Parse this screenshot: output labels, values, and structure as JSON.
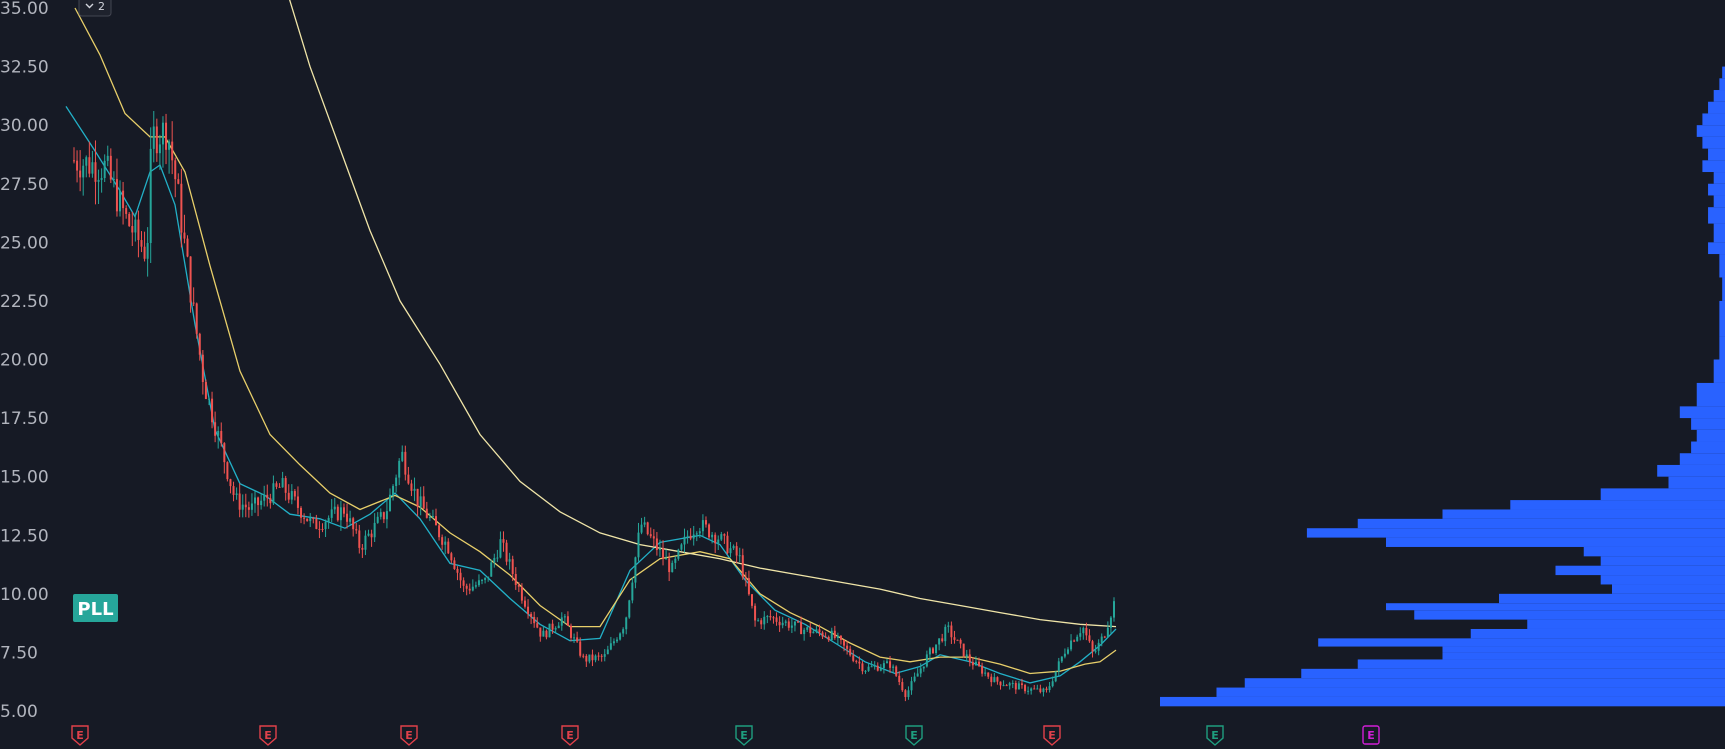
{
  "pane_badge": "2",
  "symbol": "PLL",
  "colors": {
    "background": "#161a25",
    "up": "#26a69a",
    "down": "#ef5350",
    "ma_fast": "#22b0c7",
    "ma_mid": "#e8cf6a",
    "ma_long": "#f0e5a8",
    "volume_profile": "#2962ff",
    "ticker_badge": "#26a69a",
    "earnings_red": "#e0414a",
    "earnings_green": "#1e9e7f",
    "earnings_magenta": "#d01ed6"
  },
  "chart_data": {
    "type": "candlestick",
    "y_axis": {
      "range": [
        4.0,
        35.3
      ],
      "ticks": [
        "35.00",
        "32.50",
        "30.00",
        "27.50",
        "25.00",
        "22.50",
        "20.00",
        "17.50",
        "15.00",
        "12.50",
        "10.00",
        "7.50",
        "5.00"
      ]
    },
    "price_path": [
      [
        0.0,
        28.5
      ],
      [
        0.03,
        28.2
      ],
      [
        0.05,
        26.0
      ],
      [
        0.07,
        24.5
      ],
      [
        0.075,
        29.5
      ],
      [
        0.09,
        29.8
      ],
      [
        0.1,
        27.0
      ],
      [
        0.115,
        22.0
      ],
      [
        0.125,
        19.0
      ],
      [
        0.14,
        16.5
      ],
      [
        0.155,
        14.0
      ],
      [
        0.17,
        13.6
      ],
      [
        0.2,
        14.6
      ],
      [
        0.23,
        12.9
      ],
      [
        0.26,
        13.6
      ],
      [
        0.275,
        12.0
      ],
      [
        0.3,
        13.5
      ],
      [
        0.315,
        16.0
      ],
      [
        0.33,
        14.0
      ],
      [
        0.36,
        12.0
      ],
      [
        0.375,
        10.2
      ],
      [
        0.395,
        10.5
      ],
      [
        0.41,
        12.2
      ],
      [
        0.43,
        10.0
      ],
      [
        0.45,
        8.2
      ],
      [
        0.47,
        9.0
      ],
      [
        0.49,
        7.2
      ],
      [
        0.51,
        7.3
      ],
      [
        0.53,
        8.8
      ],
      [
        0.545,
        13.0
      ],
      [
        0.56,
        12.0
      ],
      [
        0.575,
        11.0
      ],
      [
        0.59,
        12.5
      ],
      [
        0.6,
        13.0
      ],
      [
        0.62,
        12.4
      ],
      [
        0.64,
        11.5
      ],
      [
        0.655,
        8.8
      ],
      [
        0.67,
        9.0
      ],
      [
        0.7,
        8.5
      ],
      [
        0.73,
        8.2
      ],
      [
        0.76,
        6.8
      ],
      [
        0.785,
        7.0
      ],
      [
        0.8,
        5.7
      ],
      [
        0.82,
        7.3
      ],
      [
        0.84,
        8.5
      ],
      [
        0.86,
        7.2
      ],
      [
        0.885,
        6.3
      ],
      [
        0.91,
        6.0
      ],
      [
        0.935,
        5.8
      ],
      [
        0.955,
        7.8
      ],
      [
        0.97,
        8.6
      ],
      [
        0.98,
        7.4
      ],
      [
        0.99,
        8.2
      ],
      [
        1.0,
        9.6
      ]
    ],
    "moving_averages": [
      {
        "color_key": "ma_fast",
        "points": [
          [
            66,
            30.8
          ],
          [
            95,
            28.9
          ],
          [
            120,
            27.2
          ],
          [
            135,
            26.1
          ],
          [
            150,
            28.0
          ],
          [
            160,
            28.3
          ],
          [
            175,
            26.6
          ],
          [
            195,
            21.5
          ],
          [
            215,
            17.0
          ],
          [
            240,
            14.7
          ],
          [
            265,
            14.2
          ],
          [
            290,
            13.4
          ],
          [
            320,
            13.2
          ],
          [
            345,
            12.8
          ],
          [
            370,
            13.4
          ],
          [
            395,
            14.3
          ],
          [
            420,
            13.2
          ],
          [
            450,
            11.3
          ],
          [
            480,
            11.0
          ],
          [
            510,
            9.8
          ],
          [
            540,
            8.7
          ],
          [
            570,
            8.0
          ],
          [
            600,
            8.1
          ],
          [
            630,
            11.0
          ],
          [
            660,
            12.2
          ],
          [
            700,
            12.5
          ],
          [
            720,
            12.1
          ],
          [
            745,
            10.6
          ],
          [
            775,
            9.3
          ],
          [
            805,
            8.7
          ],
          [
            835,
            7.9
          ],
          [
            865,
            7.1
          ],
          [
            895,
            6.6
          ],
          [
            920,
            6.9
          ],
          [
            940,
            7.4
          ],
          [
            970,
            7.1
          ],
          [
            1000,
            6.6
          ],
          [
            1030,
            6.2
          ],
          [
            1060,
            6.5
          ],
          [
            1080,
            7.1
          ],
          [
            1100,
            7.8
          ],
          [
            1116,
            8.5
          ]
        ]
      },
      {
        "color_key": "ma_mid",
        "points": [
          [
            75,
            35.0
          ],
          [
            100,
            33.0
          ],
          [
            125,
            30.5
          ],
          [
            150,
            29.5
          ],
          [
            165,
            29.5
          ],
          [
            185,
            28.0
          ],
          [
            210,
            24.0
          ],
          [
            240,
            19.5
          ],
          [
            270,
            16.8
          ],
          [
            300,
            15.5
          ],
          [
            330,
            14.3
          ],
          [
            360,
            13.6
          ],
          [
            395,
            14.2
          ],
          [
            420,
            13.7
          ],
          [
            450,
            12.6
          ],
          [
            480,
            11.8
          ],
          [
            510,
            10.8
          ],
          [
            540,
            9.5
          ],
          [
            570,
            8.6
          ],
          [
            600,
            8.6
          ],
          [
            630,
            10.6
          ],
          [
            660,
            11.5
          ],
          [
            700,
            11.8
          ],
          [
            730,
            11.5
          ],
          [
            760,
            10.0
          ],
          [
            790,
            9.2
          ],
          [
            820,
            8.6
          ],
          [
            850,
            7.9
          ],
          [
            880,
            7.3
          ],
          [
            910,
            7.1
          ],
          [
            940,
            7.3
          ],
          [
            970,
            7.3
          ],
          [
            1000,
            7.0
          ],
          [
            1030,
            6.6
          ],
          [
            1060,
            6.7
          ],
          [
            1085,
            7.0
          ],
          [
            1100,
            7.1
          ],
          [
            1116,
            7.6
          ]
        ]
      },
      {
        "color_key": "ma_long",
        "points": [
          [
            285,
            36.0
          ],
          [
            310,
            32.5
          ],
          [
            340,
            29.0
          ],
          [
            370,
            25.5
          ],
          [
            400,
            22.5
          ],
          [
            440,
            19.8
          ],
          [
            480,
            16.8
          ],
          [
            520,
            14.8
          ],
          [
            560,
            13.5
          ],
          [
            600,
            12.6
          ],
          [
            640,
            12.1
          ],
          [
            680,
            11.8
          ],
          [
            720,
            11.5
          ],
          [
            760,
            11.1
          ],
          [
            800,
            10.8
          ],
          [
            840,
            10.5
          ],
          [
            880,
            10.2
          ],
          [
            920,
            9.8
          ],
          [
            960,
            9.5
          ],
          [
            1000,
            9.2
          ],
          [
            1040,
            8.9
          ],
          [
            1080,
            8.7
          ],
          [
            1116,
            8.6
          ]
        ]
      }
    ],
    "volume_profile": [
      [
        5.2,
        1.0
      ],
      [
        5.6,
        0.9
      ],
      [
        6.0,
        0.85
      ],
      [
        6.4,
        0.75
      ],
      [
        6.8,
        0.65
      ],
      [
        7.2,
        0.5
      ],
      [
        7.5,
        0.5
      ],
      [
        7.75,
        0.72
      ],
      [
        8.1,
        0.45
      ],
      [
        8.5,
        0.35
      ],
      [
        8.9,
        0.55
      ],
      [
        9.3,
        0.6
      ],
      [
        9.6,
        0.4
      ],
      [
        10.0,
        0.2
      ],
      [
        10.4,
        0.22
      ],
      [
        10.8,
        0.3
      ],
      [
        11.2,
        0.22
      ],
      [
        11.6,
        0.25
      ],
      [
        12.0,
        0.6
      ],
      [
        12.4,
        0.74
      ],
      [
        12.8,
        0.65
      ],
      [
        13.2,
        0.5
      ],
      [
        13.6,
        0.38
      ],
      [
        14.0,
        0.22
      ],
      [
        14.5,
        0.1
      ],
      [
        15.0,
        0.12
      ],
      [
        15.5,
        0.08
      ],
      [
        16.0,
        0.06
      ],
      [
        16.5,
        0.05
      ],
      [
        17.0,
        0.06
      ],
      [
        17.5,
        0.08
      ],
      [
        18.0,
        0.05
      ],
      [
        19.0,
        0.02
      ],
      [
        20.0,
        0.01
      ],
      [
        21.0,
        0.01
      ],
      [
        22.5,
        0.005
      ],
      [
        23.5,
        0.01
      ],
      [
        24.5,
        0.03
      ],
      [
        25.0,
        0.02
      ],
      [
        25.8,
        0.03
      ],
      [
        26.5,
        0.02
      ],
      [
        27.0,
        0.03
      ],
      [
        27.5,
        0.02
      ],
      [
        28.0,
        0.04
      ],
      [
        28.5,
        0.03
      ],
      [
        29.0,
        0.04
      ],
      [
        29.5,
        0.05
      ],
      [
        30.0,
        0.04
      ],
      [
        30.5,
        0.03
      ],
      [
        31.0,
        0.02
      ],
      [
        31.5,
        0.01
      ],
      [
        32.0,
        0.005
      ]
    ],
    "earnings_markers": [
      {
        "label": "E",
        "color_key": "earnings_red"
      },
      {
        "label": "E",
        "color_key": "earnings_red"
      },
      {
        "label": "E",
        "color_key": "earnings_red"
      },
      {
        "label": "E",
        "color_key": "earnings_red"
      },
      {
        "label": "E",
        "color_key": "earnings_green"
      },
      {
        "label": "E",
        "color_key": "earnings_green"
      },
      {
        "label": "E",
        "color_key": "earnings_red"
      },
      {
        "label": "E",
        "color_key": "earnings_green"
      },
      {
        "label": "E",
        "color_key": "earnings_magenta"
      }
    ],
    "grid": false
  }
}
